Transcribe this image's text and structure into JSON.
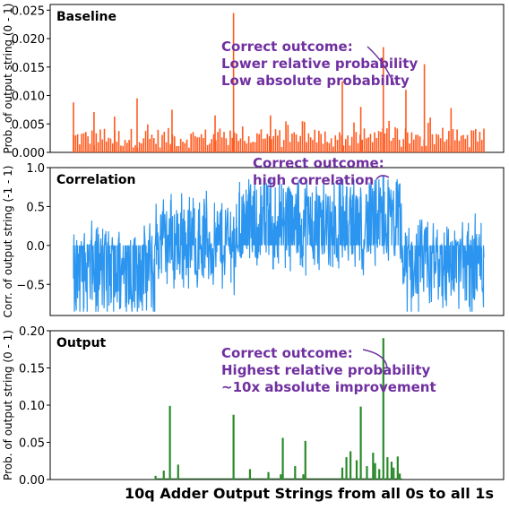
{
  "xlabel": "10q Adder Output Strings from all 0s to all 1s",
  "chart_data": [
    {
      "type": "bar",
      "title": "Baseline",
      "ylabel": "Prob. of output string (0 - 1)",
      "ylim": [
        0,
        0.026
      ],
      "yticks": [
        "0.000",
        "0.005",
        "0.010",
        "0.015",
        "0.020",
        "0.025"
      ],
      "ytick_values": [
        0,
        0.005,
        0.01,
        0.015,
        0.02,
        0.025
      ],
      "color": "#ff5a1f",
      "highlight": {
        "index": 0.755,
        "value": 0.0185
      },
      "peaks": [
        {
          "x": 0.0,
          "v": 0.0088
        },
        {
          "x": 0.05,
          "v": 0.0071
        },
        {
          "x": 0.1,
          "v": 0.0063
        },
        {
          "x": 0.155,
          "v": 0.0095
        },
        {
          "x": 0.24,
          "v": 0.0075
        },
        {
          "x": 0.345,
          "v": 0.0065
        },
        {
          "x": 0.39,
          "v": 0.0245
        },
        {
          "x": 0.48,
          "v": 0.0065
        },
        {
          "x": 0.655,
          "v": 0.0125
        },
        {
          "x": 0.7,
          "v": 0.008
        },
        {
          "x": 0.755,
          "v": 0.0185
        },
        {
          "x": 0.81,
          "v": 0.011
        },
        {
          "x": 0.855,
          "v": 0.0155
        },
        {
          "x": 0.92,
          "v": 0.0078
        }
      ],
      "annotation": {
        "lines": [
          "Correct outcome:",
          "Lower relative probability",
          "Low absolute probability"
        ],
        "color": "#7030a0"
      }
    },
    {
      "type": "line",
      "title": "Correlation",
      "ylabel": "Corr. of output string (-1 - 1)",
      "ylim": [
        -0.9,
        1.0
      ],
      "yticks": [
        "1.0",
        "0.5",
        "0.0",
        "−0.5"
      ],
      "ytick_values": [
        1.0,
        0.5,
        0.0,
        -0.5
      ],
      "color": "#2b95ef",
      "highlight": {
        "index": 0.755,
        "value": 0.9
      },
      "annotation": {
        "lines": [
          "Correct outcome:",
          "high correlation"
        ],
        "color": "#7030a0"
      }
    },
    {
      "type": "bar",
      "title": "Output",
      "ylabel": "Prob. of output string (0 - 1)",
      "ylim": [
        0,
        0.2
      ],
      "yticks": [
        "0.00",
        "0.05",
        "0.10",
        "0.15",
        "0.20"
      ],
      "ytick_values": [
        0,
        0.05,
        0.1,
        0.15,
        0.2
      ],
      "color": "#2a8a2a",
      "highlight": {
        "index": 0.755,
        "value": 0.19
      },
      "bars": [
        {
          "x": 0.2,
          "v": 0.005
        },
        {
          "x": 0.22,
          "v": 0.012
        },
        {
          "x": 0.235,
          "v": 0.099
        },
        {
          "x": 0.255,
          "v": 0.02
        },
        {
          "x": 0.39,
          "v": 0.087
        },
        {
          "x": 0.43,
          "v": 0.014
        },
        {
          "x": 0.475,
          "v": 0.01
        },
        {
          "x": 0.505,
          "v": 0.007
        },
        {
          "x": 0.51,
          "v": 0.056
        },
        {
          "x": 0.54,
          "v": 0.018
        },
        {
          "x": 0.56,
          "v": 0.007
        },
        {
          "x": 0.565,
          "v": 0.052
        },
        {
          "x": 0.655,
          "v": 0.016
        },
        {
          "x": 0.665,
          "v": 0.03
        },
        {
          "x": 0.675,
          "v": 0.038
        },
        {
          "x": 0.69,
          "v": 0.026
        },
        {
          "x": 0.7,
          "v": 0.098
        },
        {
          "x": 0.715,
          "v": 0.018
        },
        {
          "x": 0.73,
          "v": 0.036
        },
        {
          "x": 0.735,
          "v": 0.022
        },
        {
          "x": 0.745,
          "v": 0.014
        },
        {
          "x": 0.755,
          "v": 0.19
        },
        {
          "x": 0.765,
          "v": 0.03
        },
        {
          "x": 0.775,
          "v": 0.024
        },
        {
          "x": 0.78,
          "v": 0.016
        },
        {
          "x": 0.79,
          "v": 0.031
        },
        {
          "x": 0.795,
          "v": 0.008
        }
      ],
      "annotation": {
        "lines": [
          "Correct outcome:",
          "Highest relative probability",
          "~10x absolute improvement"
        ],
        "color": "#7030a0"
      }
    }
  ]
}
